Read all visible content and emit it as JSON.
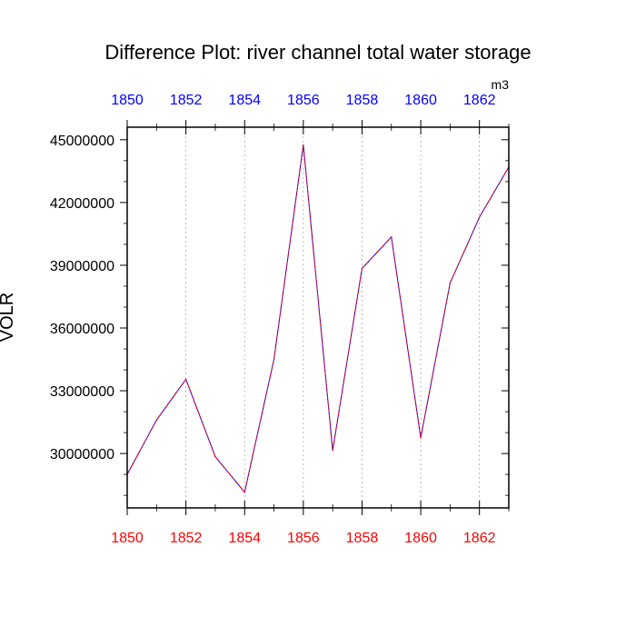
{
  "chart_data": {
    "type": "line",
    "title": "Difference Plot: river channel total water storage",
    "ylabel": "VOLR",
    "units": "m3",
    "xlim": [
      1850,
      1863
    ],
    "ylim": [
      27400000,
      45600000
    ],
    "x_ticks": [
      1850,
      1852,
      1854,
      1856,
      1858,
      1860,
      1862
    ],
    "y_ticks": [
      {
        "value": 30000000,
        "label": "30000000"
      },
      {
        "value": 33000000,
        "label": "33000000"
      },
      {
        "value": 36000000,
        "label": "36000000"
      },
      {
        "value": 39000000,
        "label": "39000000"
      },
      {
        "value": 42000000,
        "label": "42000000"
      },
      {
        "value": 45000000,
        "label": "45000000"
      }
    ],
    "grid": "vertical-dashed",
    "x": [
      1850,
      1851,
      1852,
      1853,
      1854,
      1855,
      1856,
      1857,
      1858,
      1859,
      1860,
      1861,
      1862,
      1863
    ],
    "series": [
      {
        "values": [
          29000000,
          31600000,
          33550000,
          29850000,
          28150000,
          34500000,
          44750000,
          30150000,
          38850000,
          40350000,
          30750000,
          38150000,
          41300000,
          43700000
        ],
        "color": "#0000ff"
      },
      {
        "values": [
          29000000,
          31600000,
          33550000,
          29850000,
          28150000,
          34500000,
          44750000,
          30150000,
          38850000,
          40350000,
          30750000,
          38150000,
          41300000,
          43700000
        ],
        "color": "#ff0000"
      }
    ],
    "colors": {
      "top_axis_labels": "#0000ff",
      "bottom_axis_labels": "#ff0000",
      "left_axis_labels": "#000000",
      "grid": "#aaaaaa"
    }
  }
}
